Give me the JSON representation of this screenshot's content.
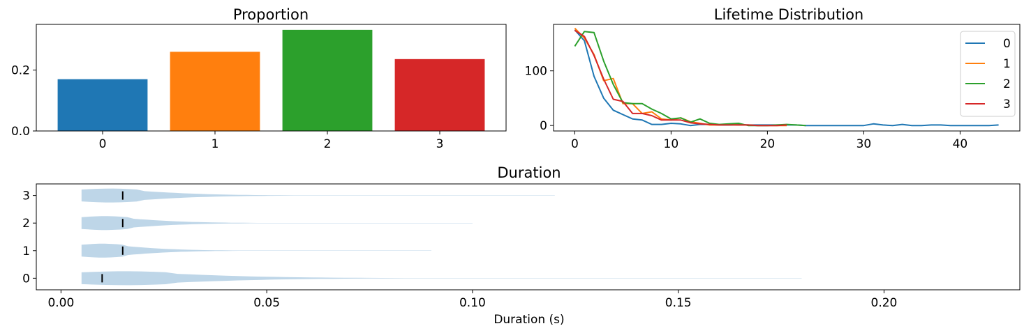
{
  "chart_data": [
    {
      "type": "bar",
      "title": "Proportion",
      "categories": [
        "0",
        "1",
        "2",
        "3"
      ],
      "values": [
        0.17,
        0.26,
        0.332,
        0.236
      ],
      "colors": [
        "#1f77b4",
        "#ff7f0e",
        "#2ca02c",
        "#d62728"
      ],
      "ylim": [
        0,
        0.35
      ],
      "yticks": [
        0.0,
        0.2
      ],
      "ytick_labels": [
        "0.0",
        "0.2"
      ],
      "xlabel": "",
      "ylabel": ""
    },
    {
      "type": "line",
      "title": "Lifetime Distribution",
      "xlim": [
        -2.2,
        46.2
      ],
      "ylim": [
        -10,
        185
      ],
      "xticks": [
        0,
        10,
        20,
        30,
        40
      ],
      "xtick_labels": [
        "0",
        "10",
        "20",
        "30",
        "40"
      ],
      "yticks": [
        0,
        100
      ],
      "ytick_labels": [
        "0",
        "100"
      ],
      "legend": "top-right",
      "series": [
        {
          "name": "0",
          "color": "#1f77b4",
          "x": [
            0,
            1,
            2,
            3,
            4,
            5,
            6,
            7,
            8,
            9,
            10,
            11,
            12,
            13,
            14,
            15,
            16,
            17,
            18,
            19,
            20,
            21,
            22,
            23,
            24,
            25,
            26,
            27,
            28,
            29,
            30,
            31,
            32,
            33,
            34,
            35,
            36,
            37,
            38,
            39,
            40,
            41,
            42,
            43,
            44
          ],
          "y": [
            175,
            155,
            90,
            50,
            28,
            20,
            12,
            10,
            2,
            2,
            4,
            3,
            0,
            2,
            2,
            1,
            1,
            2,
            1,
            1,
            1,
            1,
            1,
            1,
            0,
            0,
            0,
            0,
            0,
            0,
            0,
            3,
            1,
            0,
            2,
            0,
            0,
            1,
            1,
            0,
            0,
            0,
            0,
            0,
            1
          ]
        },
        {
          "name": "1",
          "color": "#ff7f0e",
          "x": [
            0,
            1,
            2,
            3,
            4,
            5,
            6,
            7,
            8,
            9,
            10,
            11,
            12,
            13,
            14,
            15,
            16,
            17,
            18,
            19,
            20,
            21,
            22
          ],
          "y": [
            178,
            160,
            130,
            82,
            86,
            40,
            40,
            22,
            25,
            12,
            10,
            14,
            7,
            4,
            1,
            1,
            2,
            1,
            1,
            0,
            0,
            0,
            0
          ]
        },
        {
          "name": "2",
          "color": "#2ca02c",
          "x": [
            0,
            1,
            2,
            3,
            4,
            5,
            6,
            7,
            8,
            9,
            10,
            11,
            12,
            13,
            14,
            15,
            16,
            17,
            18,
            19,
            20,
            21,
            22,
            23,
            24
          ],
          "y": [
            145,
            172,
            170,
            118,
            75,
            42,
            40,
            40,
            30,
            22,
            12,
            14,
            6,
            12,
            4,
            2,
            3,
            4,
            0,
            0,
            0,
            1,
            2,
            1,
            0
          ]
        },
        {
          "name": "3",
          "color": "#d62728",
          "x": [
            0,
            1,
            2,
            3,
            4,
            5,
            6,
            7,
            8,
            9,
            10,
            11,
            12,
            13,
            14,
            15,
            16,
            17,
            18,
            19,
            20,
            21,
            22
          ],
          "y": [
            174,
            163,
            128,
            85,
            48,
            44,
            22,
            22,
            18,
            10,
            10,
            10,
            5,
            3,
            2,
            1,
            1,
            1,
            1,
            0,
            0,
            0,
            1
          ]
        }
      ]
    },
    {
      "type": "violin",
      "title": "Duration",
      "xlabel": "Duration (s)",
      "xlim": [
        -0.006,
        0.233
      ],
      "xticks": [
        0.0,
        0.05,
        0.1,
        0.15,
        0.2
      ],
      "xtick_labels": [
        "0.00",
        "0.05",
        "0.10",
        "0.15",
        "0.20"
      ],
      "categories": [
        "0",
        "1",
        "2",
        "3"
      ],
      "yticks": [
        0,
        1,
        2,
        3
      ],
      "ytick_labels": [
        "0",
        "1",
        "2",
        "3"
      ],
      "violin_color": "#bed6e8",
      "series": [
        {
          "name": "0",
          "min": 0.005,
          "max": 0.18,
          "median": 0.01
        },
        {
          "name": "1",
          "min": 0.005,
          "max": 0.09,
          "median": 0.015
        },
        {
          "name": "2",
          "min": 0.005,
          "max": 0.1,
          "median": 0.015
        },
        {
          "name": "3",
          "min": 0.005,
          "max": 0.12,
          "median": 0.015
        }
      ]
    }
  ]
}
